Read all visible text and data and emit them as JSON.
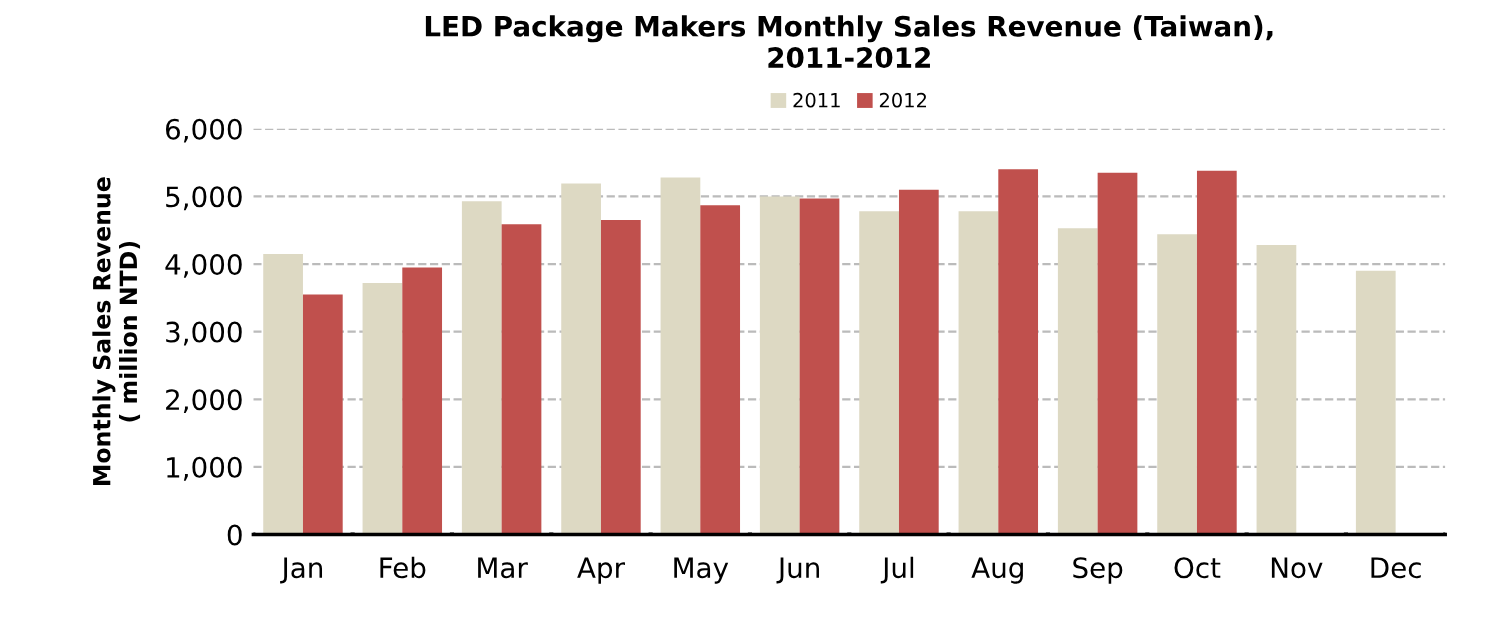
{
  "chart_data": {
    "type": "bar",
    "title": "LED Package Makers Monthly Sales Revenue (Taiwan),\n2011-2012",
    "ylabel": "Monthly Sales Revenue\n( million NTD)",
    "categories": [
      "Jan",
      "Feb",
      "Mar",
      "Apr",
      "May",
      "Jun",
      "Jul",
      "Aug",
      "Sep",
      "Oct",
      "Nov",
      "Dec"
    ],
    "series": [
      {
        "name": "2011",
        "color": "#ddd9c3",
        "values": [
          4150,
          3720,
          4930,
          5190,
          5280,
          5000,
          4780,
          4780,
          4530,
          4440,
          4280,
          3900
        ]
      },
      {
        "name": "2012",
        "color": "#c0504d",
        "values": [
          3550,
          3950,
          4590,
          4650,
          4870,
          4970,
          5100,
          5400,
          5350,
          5380,
          null,
          null
        ]
      }
    ],
    "ylim": [
      0,
      6000
    ],
    "yticks": [
      {
        "value": 0,
        "label": "0"
      },
      {
        "value": 1000,
        "label": "1,000"
      },
      {
        "value": 2000,
        "label": "2,000"
      },
      {
        "value": 3000,
        "label": "3,000"
      },
      {
        "value": 4000,
        "label": "4,000"
      },
      {
        "value": 5000,
        "label": "5,000"
      },
      {
        "value": 6000,
        "label": "6,000"
      }
    ],
    "grid": "y",
    "legend": "top"
  }
}
